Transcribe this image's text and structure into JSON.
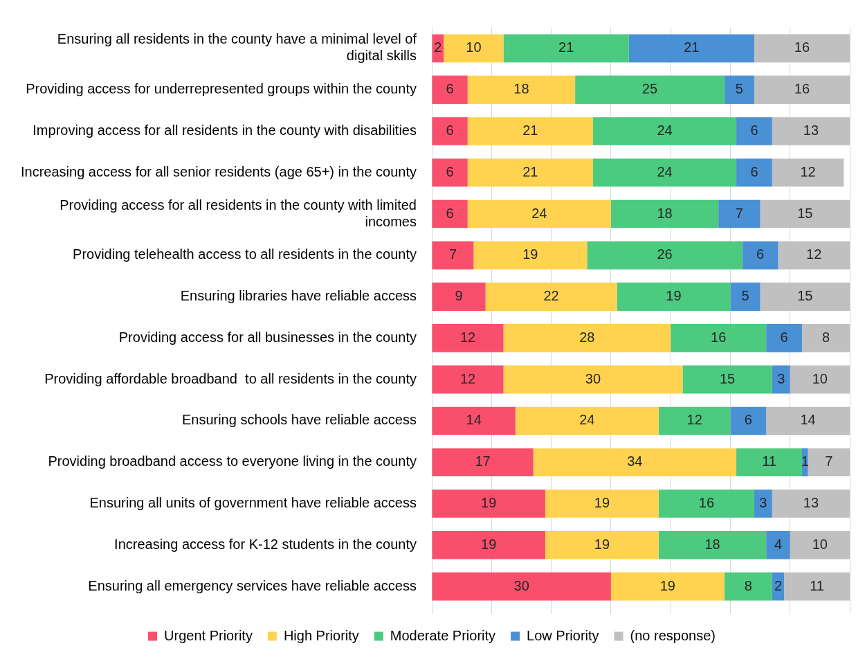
{
  "chart_data": {
    "type": "bar",
    "orientation": "horizontal",
    "stacked": true,
    "data_labels": true,
    "grid": "x",
    "legend": "bottom",
    "tick_labels": "y",
    "categories": [
      "Ensuring all residents in the county have a minimal level of digital skills",
      "Providing access for underrepresented groups within the county",
      "Improving access for all residents in the county with disabilities",
      "Increasing access for all senior residents (age 65+) in the county",
      "Providing access for all residents in the county with limited incomes",
      "Providing telehealth access to all residents in the county",
      "Ensuring libraries have reliable access",
      "Providing access for all businesses in the county",
      "Providing affordable broadband  to all residents in the county",
      "Ensuring schools have reliable access",
      "Providing broadband access to everyone living in the county",
      "Ensuring all units of government have reliable access",
      "Increasing access for K-12 students in the county",
      "Ensuring all emergency services have reliable access"
    ],
    "xlim": [
      0,
      70
    ],
    "xticks": [
      {
        "value": 0,
        "label": null
      },
      {
        "value": 10,
        "label": null
      },
      {
        "value": 20,
        "label": null
      },
      {
        "value": 30,
        "label": null
      },
      {
        "value": 40,
        "label": null
      },
      {
        "value": 50,
        "label": null
      },
      {
        "value": 60,
        "label": null
      },
      {
        "value": 70,
        "label": null
      }
    ],
    "series": [
      {
        "name": "Urgent Priority",
        "color": "#f94f6c",
        "values": [
          2,
          6,
          6,
          6,
          6,
          7,
          9,
          12,
          12,
          14,
          17,
          19,
          19,
          30
        ]
      },
      {
        "name": "High Priority",
        "color": "#ffd34f",
        "values": [
          10,
          18,
          21,
          21,
          24,
          19,
          22,
          28,
          30,
          24,
          34,
          19,
          19,
          19
        ]
      },
      {
        "name": "Moderate Priority",
        "color": "#4cca7f",
        "values": [
          21,
          25,
          24,
          24,
          18,
          26,
          19,
          16,
          15,
          12,
          11,
          16,
          18,
          8
        ]
      },
      {
        "name": "Low Priority",
        "color": "#4a90d4",
        "values": [
          21,
          5,
          6,
          6,
          7,
          6,
          5,
          6,
          3,
          6,
          1,
          3,
          4,
          2
        ]
      },
      {
        "name": "(no response)",
        "color": "#c0c0c0",
        "values": [
          16,
          16,
          13,
          12,
          15,
          12,
          15,
          8,
          10,
          14,
          7,
          13,
          10,
          11
        ]
      }
    ]
  }
}
